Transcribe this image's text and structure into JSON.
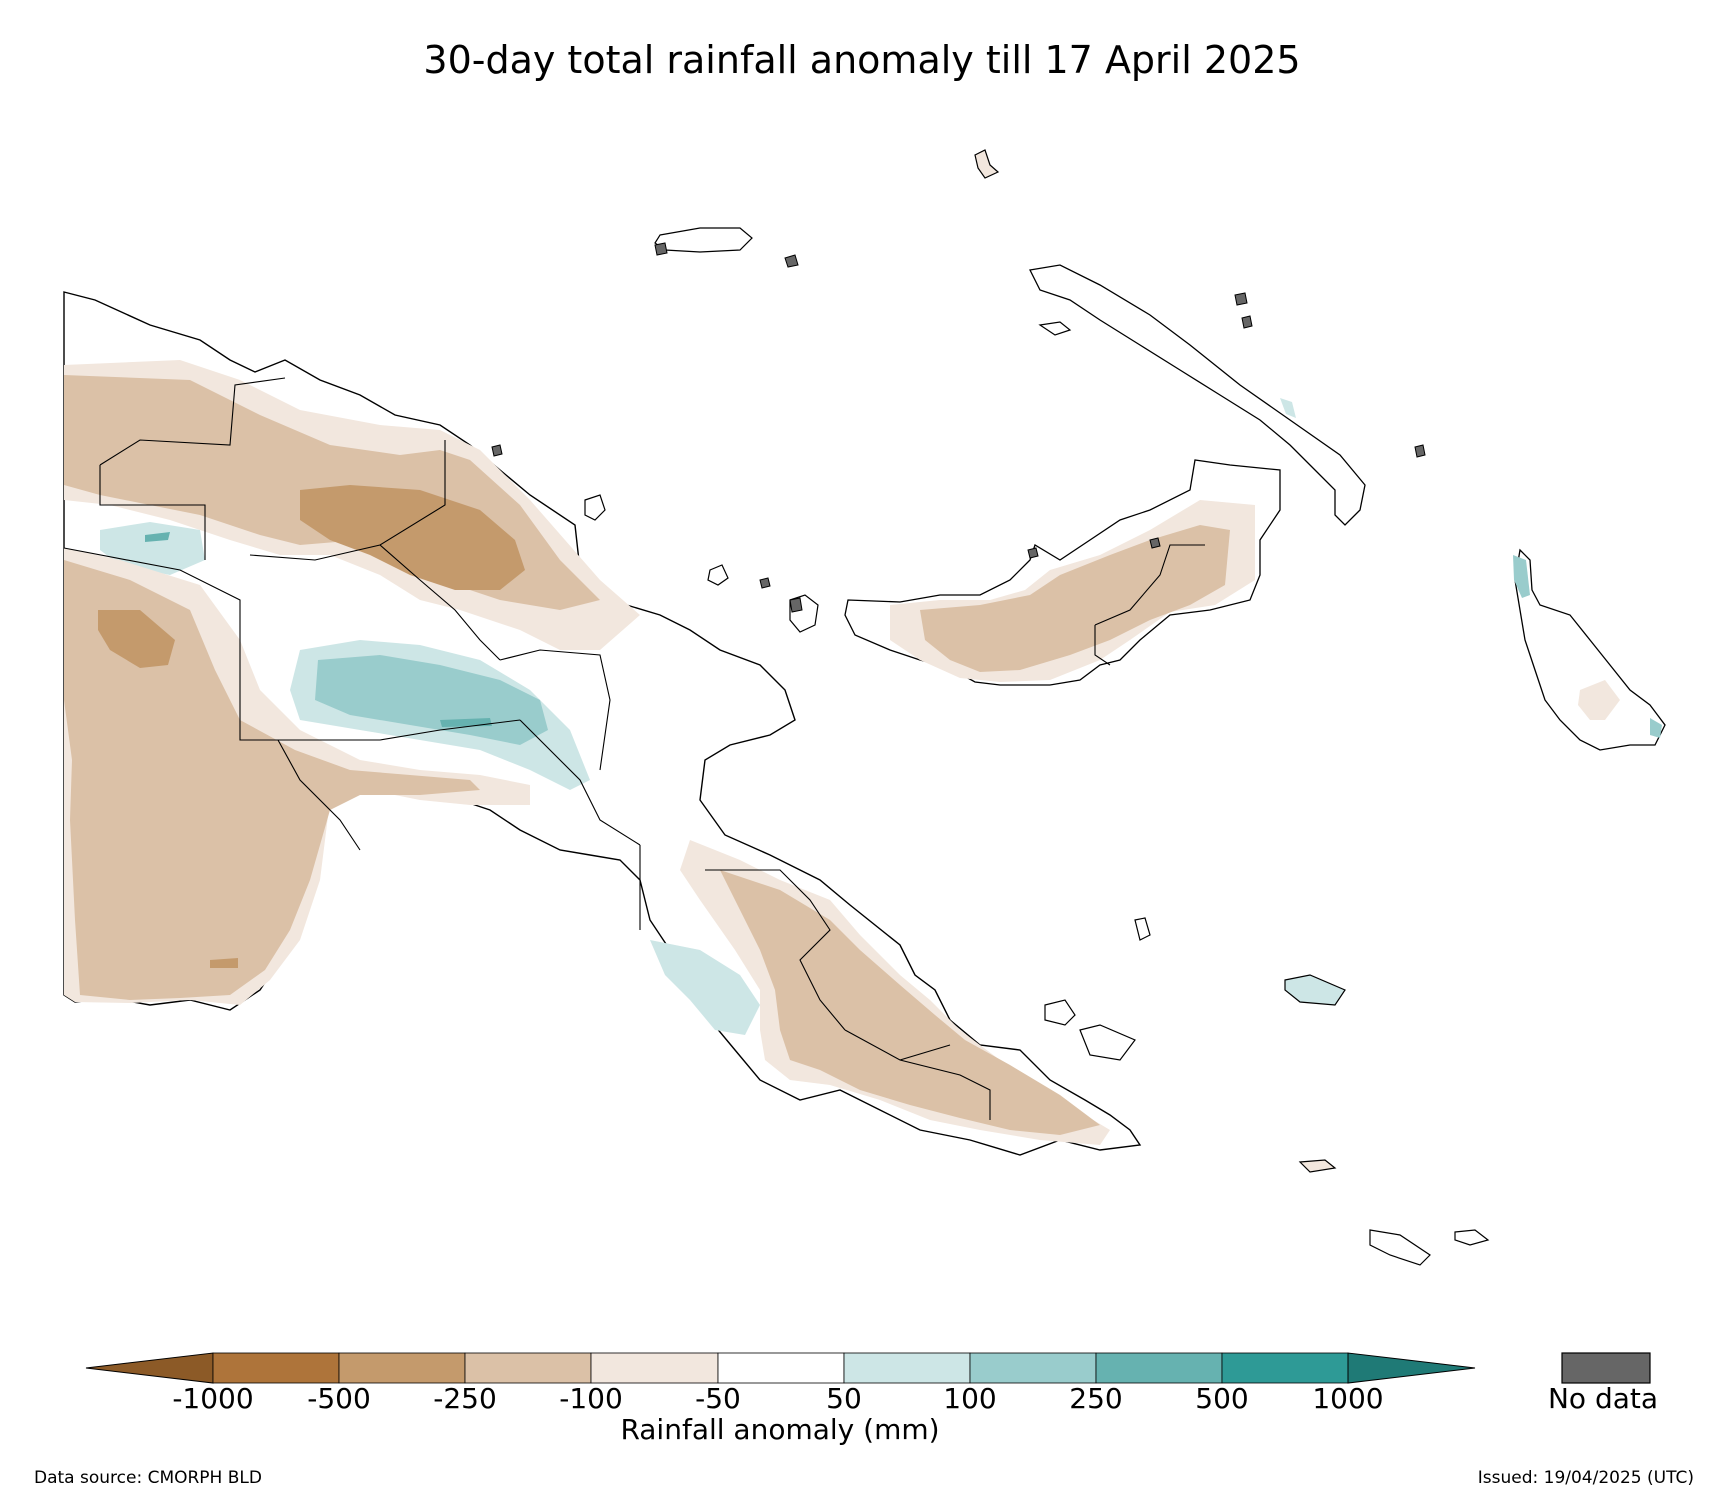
{
  "title": "30-day total rainfall anomaly till 17 April 2025",
  "colorbar": {
    "title": "Rainfall anomaly (mm)",
    "ticks": [
      "-1000",
      "-500",
      "-250",
      "-100",
      "-50",
      "50",
      "100",
      "250",
      "500",
      "1000"
    ],
    "colors": {
      "below_min": "#8c5a27",
      "bins": [
        "#ae743a",
        "#c49a6c",
        "#dbc1a7",
        "#f2e7de",
        "#ffffff",
        "#cde6e6",
        "#99cccc",
        "#66b2b0",
        "#2e9a96"
      ],
      "above_max": "#1f7a76"
    },
    "no_data_label": "No data",
    "no_data_color": "#666666"
  },
  "colors": {
    "dry_light": "#f2e7de",
    "dry_mid": "#dbc1a7",
    "dry_strong": "#c49a6c",
    "wet_light": "#cde6e6",
    "wet_mid": "#99cccc",
    "wet_strong": "#66b2b0",
    "coast": "#000000"
  },
  "footer": {
    "source": "Data source: CMORPH BLD",
    "issued": "Issued: 19/04/2025 (UTC)"
  }
}
